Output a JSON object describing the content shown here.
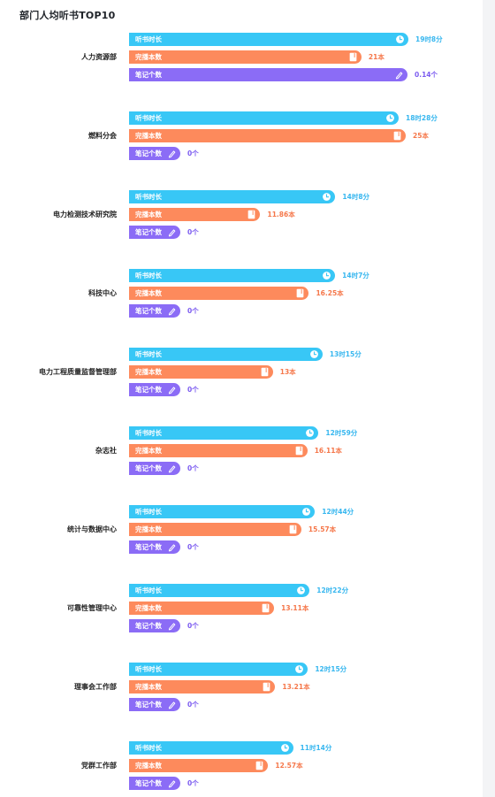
{
  "title": "部门人均听书TOP10",
  "colors": {
    "time": "#38c7f6",
    "books": "#fd8a5c",
    "notes": "#8b6cf6"
  },
  "icons": {
    "time": "clock-icon",
    "books": "book-icon",
    "notes": "pencil-icon"
  },
  "chart_data": {
    "type": "bar",
    "orientation": "horizontal",
    "title": "部门人均听书TOP10",
    "categories": [
      "人力资源部",
      "燃料分会",
      "电力检测技术研究院",
      "科技中心",
      "电力工程质量监督管理部",
      "杂志社",
      "统计与数据中心",
      "可靠性管理中心",
      "理事会工作部",
      "党群工作部"
    ],
    "series": [
      {
        "name": "听书时长",
        "unit": "minutes",
        "values": [
          1148,
          1108,
          848,
          847,
          795,
          779,
          764,
          742,
          735,
          674
        ],
        "value_labels": [
          "19时8分",
          "18时28分",
          "14时8分",
          "14时7分",
          "13时15分",
          "12时59分",
          "12时44分",
          "12时22分",
          "12时15分",
          "11时14分"
        ]
      },
      {
        "name": "完播本数",
        "values": [
          21,
          25,
          11.86,
          16.25,
          13,
          16.11,
          15.57,
          13.11,
          13.21,
          12.57
        ],
        "value_labels": [
          "21本",
          "25本",
          "11.86本",
          "16.25本",
          "13本",
          "16.11本",
          "15.57本",
          "13.11本",
          "13.21本",
          "12.57本"
        ]
      },
      {
        "name": "笔记个数",
        "values": [
          0.14,
          0,
          0,
          0,
          0,
          0,
          0,
          0,
          0,
          0
        ],
        "value_labels": [
          "0.14个",
          "0个",
          "0个",
          "0个",
          "0个",
          "0个",
          "0个",
          "0个",
          "0个",
          "0个"
        ]
      }
    ],
    "legend": "none"
  }
}
